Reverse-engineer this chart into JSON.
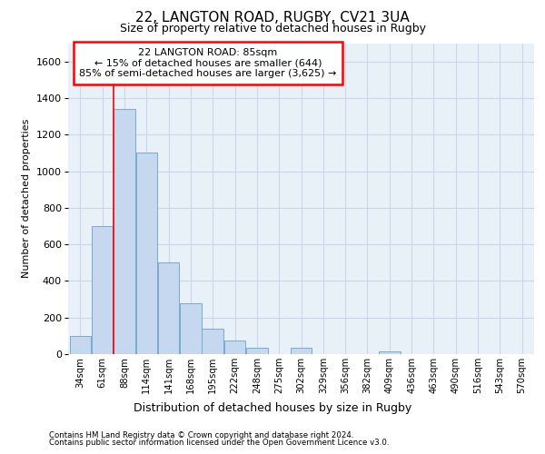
{
  "title_line1": "22, LANGTON ROAD, RUGBY, CV21 3UA",
  "title_line2": "Size of property relative to detached houses in Rugby",
  "xlabel": "Distribution of detached houses by size in Rugby",
  "ylabel": "Number of detached properties",
  "footer_line1": "Contains HM Land Registry data © Crown copyright and database right 2024.",
  "footer_line2": "Contains public sector information licensed under the Open Government Licence v3.0.",
  "annotation_title": "22 LANGTON ROAD: 85sqm",
  "annotation_line2": "← 15% of detached houses are smaller (644)",
  "annotation_line3": "85% of semi-detached houses are larger (3,625) →",
  "bar_labels": [
    "34sqm",
    "61sqm",
    "88sqm",
    "114sqm",
    "141sqm",
    "168sqm",
    "195sqm",
    "222sqm",
    "248sqm",
    "275sqm",
    "302sqm",
    "329sqm",
    "356sqm",
    "382sqm",
    "409sqm",
    "436sqm",
    "463sqm",
    "490sqm",
    "516sqm",
    "543sqm",
    "570sqm"
  ],
  "bar_values": [
    100,
    700,
    1340,
    1100,
    500,
    280,
    140,
    75,
    35,
    0,
    35,
    0,
    0,
    0,
    15,
    0,
    0,
    0,
    0,
    0,
    0
  ],
  "bar_color": "#c5d8f0",
  "bar_edge_color": "#7aaad0",
  "red_line_x": 1.5,
  "ylim": [
    0,
    1700
  ],
  "yticks": [
    0,
    200,
    400,
    600,
    800,
    1000,
    1200,
    1400,
    1600
  ],
  "grid_color": "#c8d8e8",
  "fig_bg_color": "#ffffff",
  "plot_bg_color": "#e8f0f8"
}
